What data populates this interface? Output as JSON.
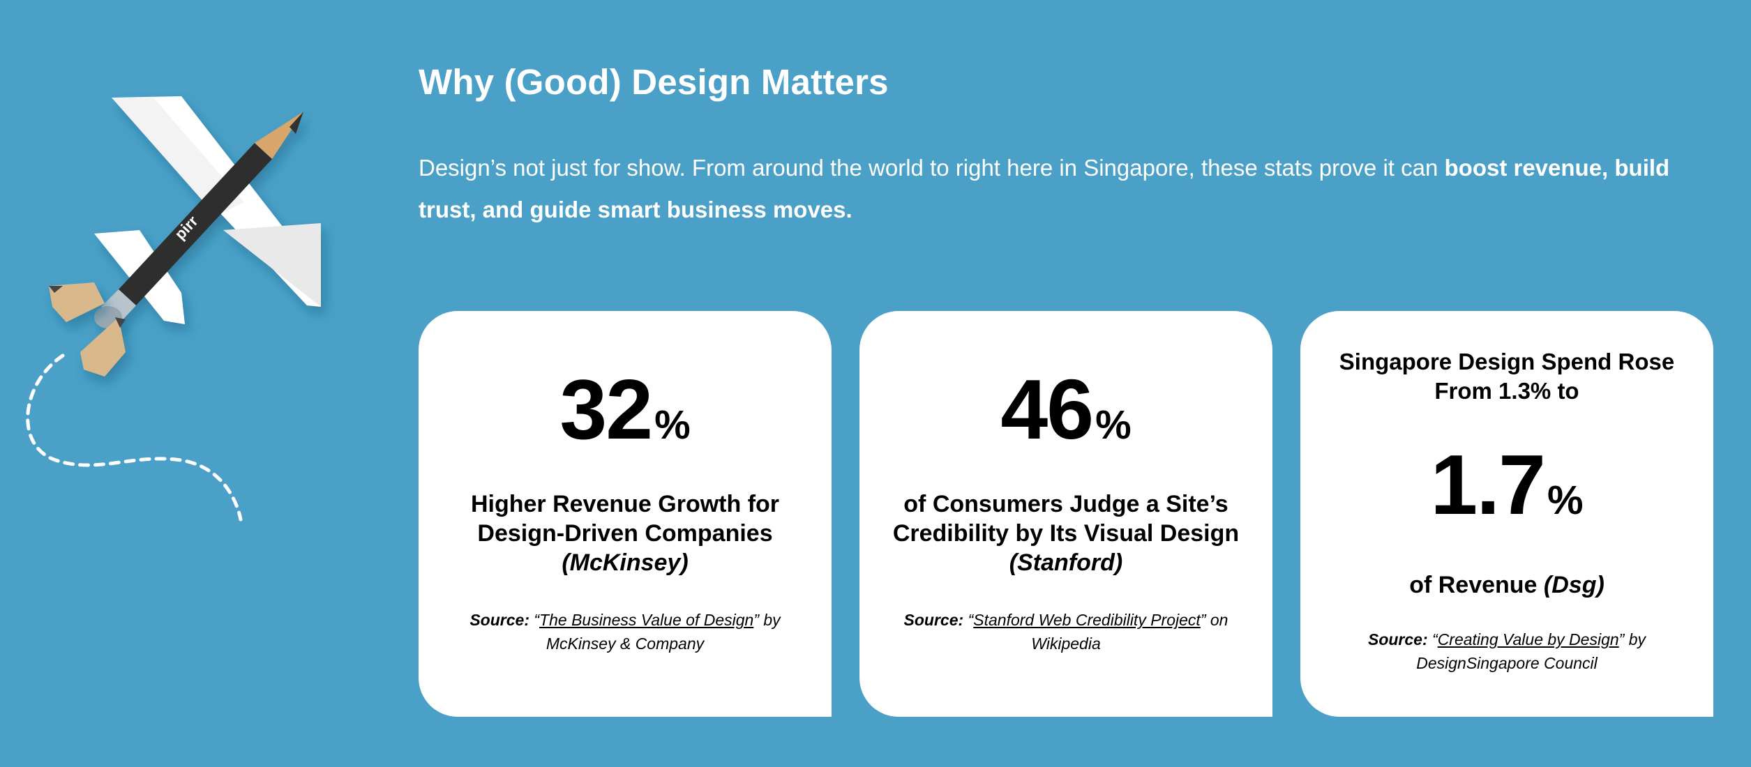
{
  "section": {
    "title": "Why (Good) Design Matters",
    "intro_plain": "Design’s not just for show. From around the world to right here in Singapore, these stats prove it can ",
    "intro_bold": "boost revenue, build trust, and guide smart business moves.",
    "hero_image_label": "pirr"
  },
  "cards": [
    {
      "stat_number": "32",
      "stat_suffix": "%",
      "headline": "Higher Revenue Growth for Design-Driven Companies",
      "cite": "(McKinsey)",
      "source_label": "Source:",
      "source_open_quote": " “",
      "source_link": "The Business Value of Design",
      "source_after": "” by McKinsey & Company"
    },
    {
      "stat_number": "46",
      "stat_suffix": "%",
      "headline": "of Consumers Judge a Site’s Credibility by Its Visual Design",
      "cite": "(Stanford)",
      "source_label": "Source:",
      "source_open_quote": " “",
      "source_link": "Stanford Web Credibility Project",
      "source_after": "” on Wikipedia"
    },
    {
      "pretitle": "Singapore Design Spend Rose From 1.3% to",
      "stat_number": "1.7",
      "stat_suffix": "%",
      "headline": "of Revenue ",
      "cite": "(Dsg)",
      "source_label": "Source:",
      "source_open_quote": " “",
      "source_link": "Creating Value by Design",
      "source_after": "” by DesignSingapore Council"
    }
  ],
  "colors": {
    "background": "#4aa0c7",
    "card": "#ffffff",
    "text_dark": "#000000"
  }
}
